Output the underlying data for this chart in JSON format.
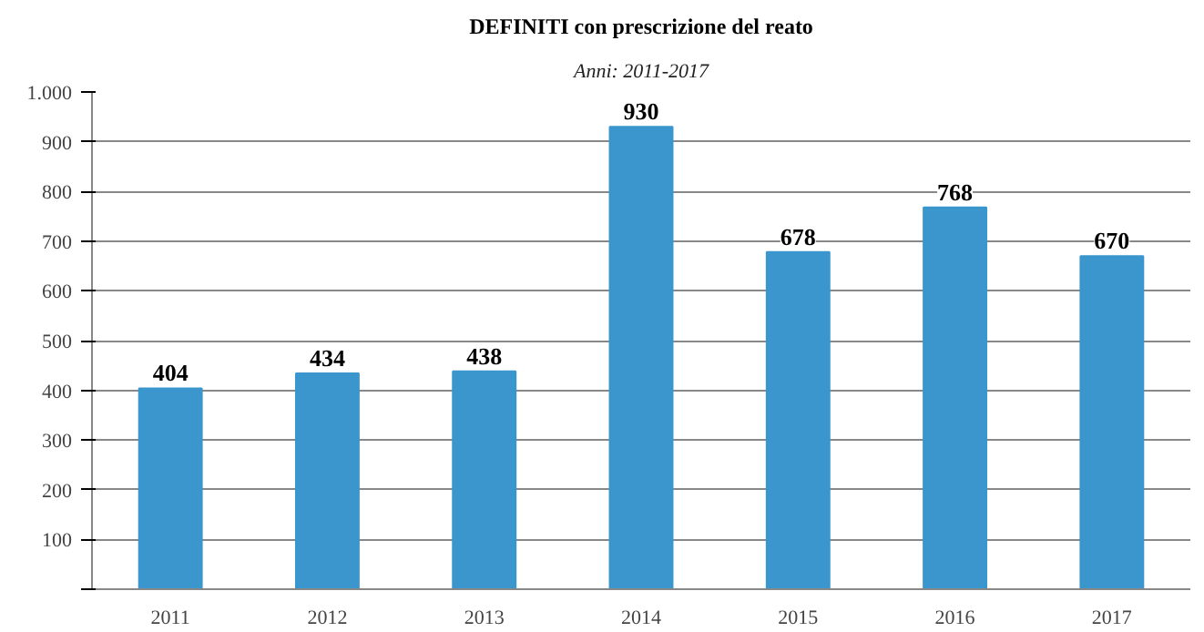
{
  "chart_data": {
    "type": "bar",
    "title": "DEFINITI con prescrizione del reato",
    "subtitle": "Anni: 2011-2017",
    "categories": [
      "2011",
      "2012",
      "2013",
      "2014",
      "2015",
      "2016",
      "2017"
    ],
    "values": [
      404,
      434,
      438,
      930,
      678,
      768,
      670
    ],
    "color": "#3a96cc",
    "data_labels": true,
    "ylim": [
      0,
      1000
    ],
    "yticks": [
      {
        "value": 0,
        "label": null
      },
      100,
      200,
      300,
      400,
      500,
      600,
      700,
      800,
      900,
      {
        "value": 1000,
        "label": "1.000"
      }
    ],
    "grid": "y"
  }
}
